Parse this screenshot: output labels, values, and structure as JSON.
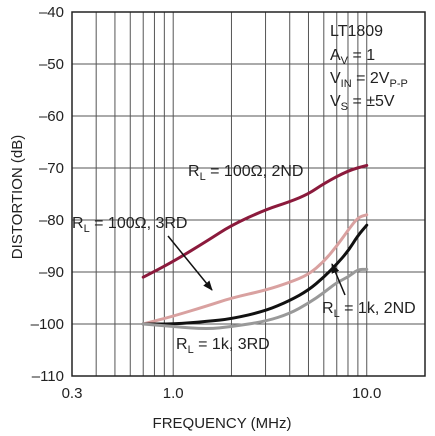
{
  "chart_data": {
    "type": "line",
    "ylabel": "DISTORTION (dB)",
    "xlabel": "FREQUENCY (MHz)",
    "x_scale": "log",
    "xlim": [
      0.3,
      20
    ],
    "ylim": [
      -110,
      -40
    ],
    "x_ticks": [
      0.3,
      1.0,
      10.0
    ],
    "x_tick_labels": [
      "0.3",
      "1.0",
      "10.0"
    ],
    "y_ticks": [
      -40,
      -50,
      -60,
      -70,
      -80,
      -90,
      -100,
      -110
    ],
    "y_tick_labels": [
      "–40",
      "–50",
      "–60",
      "–70",
      "–80",
      "–90",
      "–100",
      "–110"
    ],
    "grid": true,
    "conditions": {
      "part": "LT1809",
      "gain_main": "A",
      "gain_sub": "V",
      "gain_value": " = 1",
      "vin_main": "V",
      "vin_sub": "IN",
      "vin_value": " = 2V",
      "vin_unit_sub": "P-P",
      "vs_main": "V",
      "vs_sub": "S",
      "vs_value": " = ±5V"
    },
    "series": [
      {
        "name": "R_L = 100Ω, 2ND",
        "label_main": "R",
        "label_sub": "L",
        "label_rest": " = 100Ω, 2ND",
        "color": "#8B1A3C",
        "x": [
          0.7,
          1.0,
          1.5,
          2.0,
          3.0,
          4.0,
          5.0,
          6.0,
          8.0,
          10.0
        ],
        "y": [
          -91,
          -88,
          -84,
          -81,
          -78,
          -76.5,
          -75,
          -73,
          -70.5,
          -69.5
        ]
      },
      {
        "name": "R_L = 100Ω, 3RD",
        "label_main": "R",
        "label_sub": "L",
        "label_rest": " = 100Ω, 3RD",
        "color": "#D9A1A0",
        "x": [
          0.7,
          1.0,
          1.5,
          2.0,
          3.0,
          4.0,
          5.0,
          6.0,
          7.0,
          8.0,
          9.0,
          10.0
        ],
        "y": [
          -100,
          -98.5,
          -96.5,
          -95,
          -93.5,
          -92,
          -90.5,
          -88,
          -85,
          -82,
          -79.5,
          -79
        ]
      },
      {
        "name": "R_L = 1k, 2ND",
        "label_main": "R",
        "label_sub": "L",
        "label_rest": " = 1k, 2ND",
        "color": "#111111",
        "x": [
          0.7,
          1.0,
          1.5,
          2.0,
          3.0,
          4.0,
          5.0,
          6.0,
          7.0,
          8.0,
          9.0,
          10.0
        ],
        "y": [
          -100,
          -100,
          -99.5,
          -99,
          -97.5,
          -95.5,
          -93.5,
          -91,
          -88.5,
          -86,
          -83,
          -81
        ]
      },
      {
        "name": "R_L = 1k, 3RD",
        "label_main": "R",
        "label_sub": "L",
        "label_rest": " = 1k, 3RD",
        "color": "#999999",
        "x": [
          0.7,
          1.0,
          1.5,
          2.0,
          3.0,
          4.0,
          5.0,
          6.0,
          7.0,
          8.0,
          9.0,
          10.0
        ],
        "y": [
          -100,
          -100.5,
          -101,
          -100.5,
          -99.5,
          -98,
          -96,
          -94,
          -92,
          -91,
          -89.5,
          -89.5
        ]
      }
    ]
  }
}
